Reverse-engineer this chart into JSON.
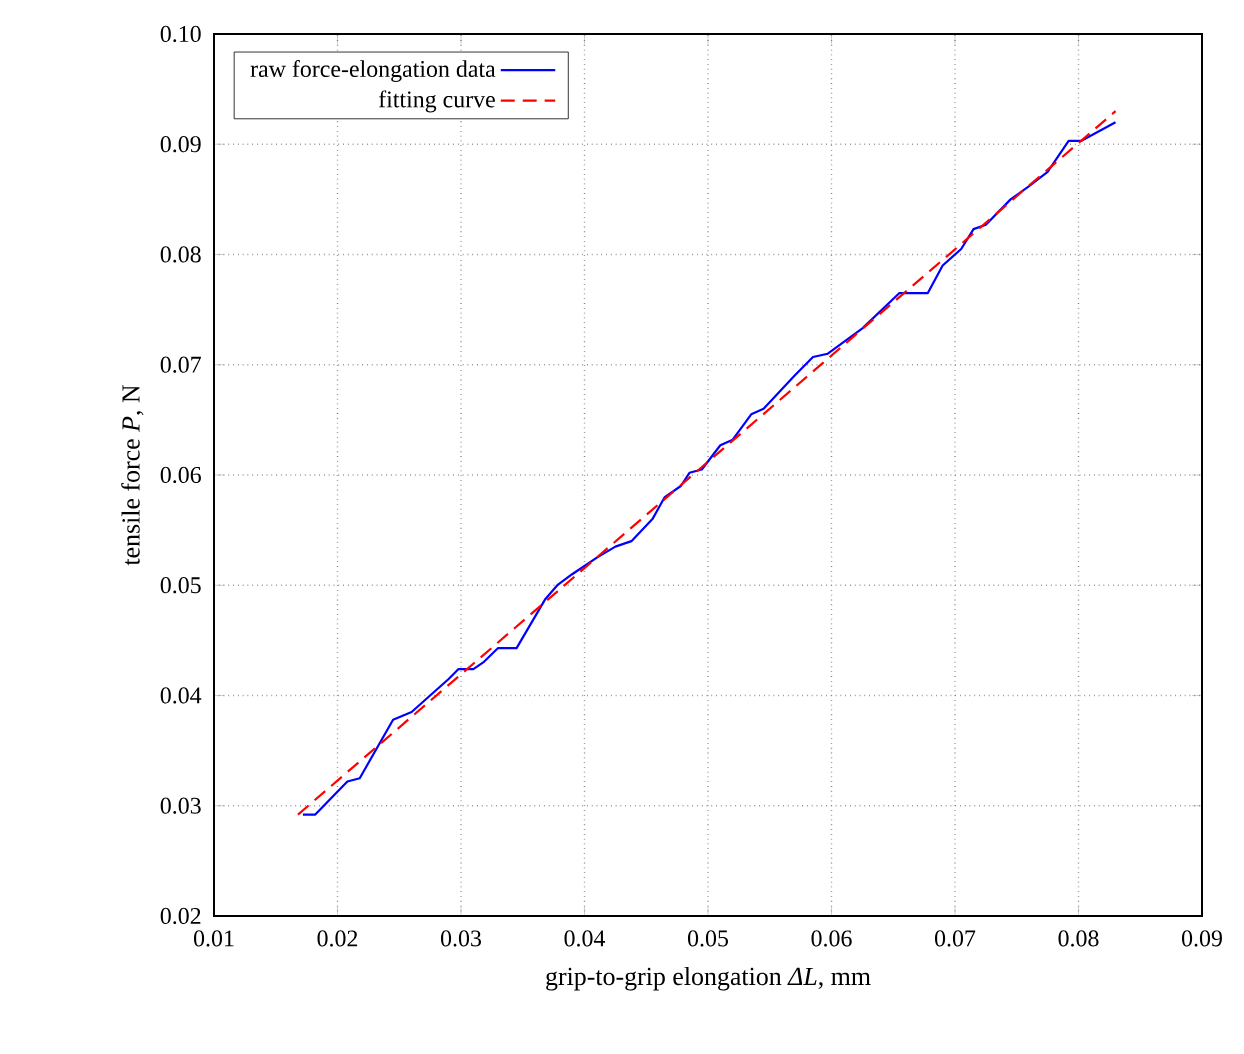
{
  "chart_data": {
    "type": "line",
    "xlabel": "grip-to-grip elongation *ΔL*, mm",
    "ylabel": "tensile force *P*, N",
    "xlim": [
      0.01,
      0.09
    ],
    "ylim": [
      0.02,
      0.1
    ],
    "xticks": [
      0.01,
      0.02,
      0.03,
      0.04,
      0.05,
      0.06,
      0.07,
      0.08,
      0.09
    ],
    "yticks": [
      0.02,
      0.03,
      0.04,
      0.05,
      0.06,
      0.07,
      0.08,
      0.09,
      {
        "value": 0.1,
        "label": "0.10"
      }
    ],
    "grid": true,
    "legend": "top left",
    "series": [
      {
        "name": "raw force-elongation data",
        "color": "#0000ff",
        "line_style": "solid",
        "x": [
          0.0172,
          0.0182,
          0.0208,
          0.0218,
          0.0245,
          0.026,
          0.0275,
          0.029,
          0.0298,
          0.031,
          0.0318,
          0.033,
          0.0345,
          0.0368,
          0.0378,
          0.039,
          0.041,
          0.0425,
          0.0438,
          0.0455,
          0.0465,
          0.0478,
          0.0485,
          0.0495,
          0.051,
          0.052,
          0.0535,
          0.0545,
          0.057,
          0.0585,
          0.0597,
          0.0625,
          0.0655,
          0.0678,
          0.069,
          0.0705,
          0.0715,
          0.0725,
          0.0745,
          0.076,
          0.0775,
          0.0792,
          0.0802,
          0.083
        ],
        "values": [
          0.0292,
          0.0292,
          0.0322,
          0.0325,
          0.0378,
          0.0385,
          0.04,
          0.0415,
          0.0424,
          0.0424,
          0.043,
          0.0443,
          0.0443,
          0.0487,
          0.05,
          0.051,
          0.0525,
          0.0535,
          0.054,
          0.056,
          0.058,
          0.059,
          0.0602,
          0.0605,
          0.0627,
          0.0632,
          0.0655,
          0.066,
          0.069,
          0.0707,
          0.071,
          0.0733,
          0.0765,
          0.0765,
          0.079,
          0.0805,
          0.0823,
          0.0827,
          0.085,
          0.0862,
          0.0875,
          0.0903,
          0.0903,
          0.092
        ]
      },
      {
        "name": "fitting curve",
        "color": "#ff0000",
        "line_style": "dashed",
        "x": [
          0.0168,
          0.083
        ],
        "values": [
          0.0292,
          0.093
        ]
      }
    ]
  }
}
